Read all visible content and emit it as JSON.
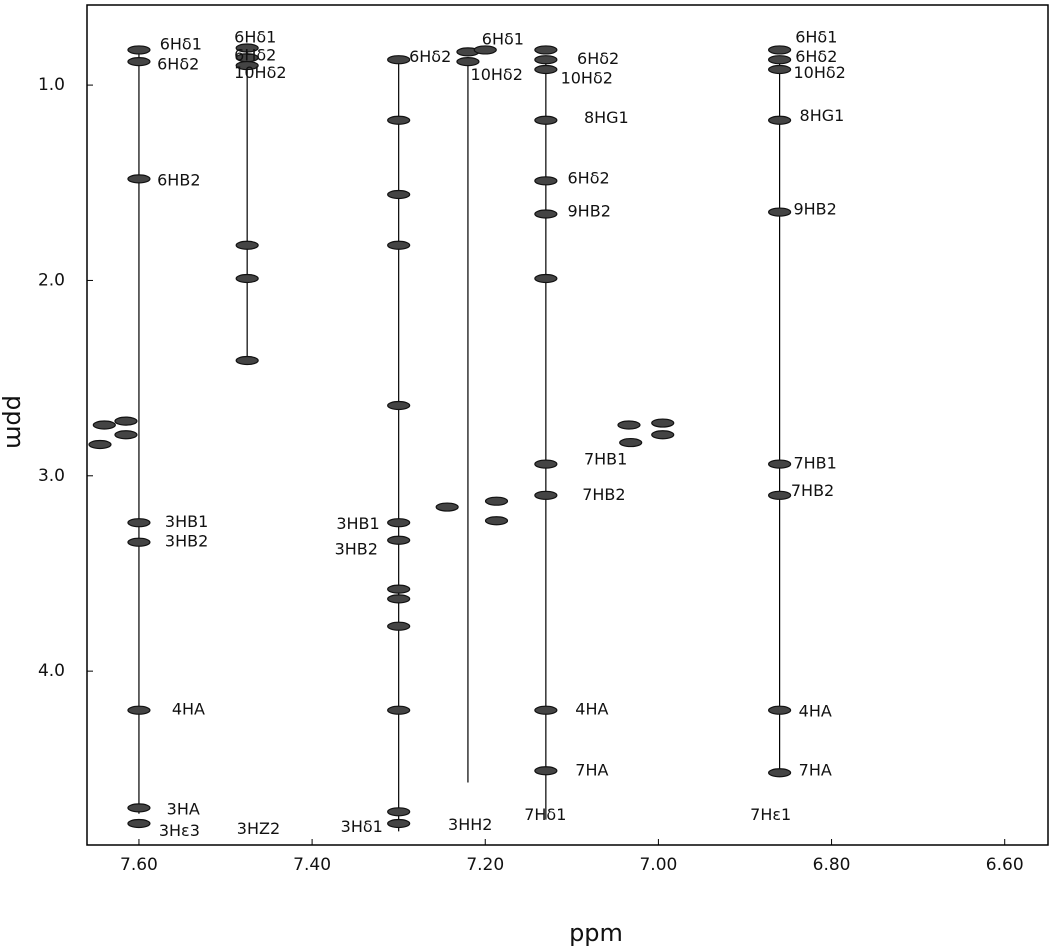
{
  "chart_data": {
    "type": "nmr2d",
    "xlabel": "ppm",
    "ylabel": "ppm",
    "xlim": [
      7.66,
      6.55
    ],
    "ylim": [
      0.59,
      4.89
    ],
    "xticks": [
      {
        "value": 7.6,
        "label": "7.60"
      },
      {
        "value": 7.4,
        "label": "7.40"
      },
      {
        "value": 7.2,
        "label": "7.20"
      },
      {
        "value": 7.0,
        "label": "7.00"
      },
      {
        "value": 6.8,
        "label": "6.80"
      },
      {
        "value": 6.6,
        "label": "6.60"
      }
    ],
    "yticks": [
      {
        "value": 1,
        "label": "1.0"
      },
      {
        "value": 2,
        "label": "2.0"
      },
      {
        "value": 3,
        "label": "3.0"
      },
      {
        "value": 4,
        "label": "4.0"
      }
    ],
    "color": "#111111",
    "connections": [
      {
        "x": 7.6,
        "y": [
          0.82,
          4.73
        ]
      },
      {
        "x": 7.475,
        "y": [
          0.8,
          2.41
        ]
      },
      {
        "x": 7.3,
        "y": [
          0.85,
          4.82
        ]
      },
      {
        "x": 7.22,
        "y": [
          0.86,
          4.57
        ]
      },
      {
        "x": 7.13,
        "y": [
          0.85,
          4.76
        ]
      },
      {
        "x": 6.86,
        "y": [
          0.85,
          4.52
        ]
      }
    ],
    "peaks": {
      "x": [
        7.6,
        7.6,
        7.6,
        7.6,
        7.6,
        7.6,
        7.6,
        7.6,
        7.64,
        7.615,
        7.645,
        7.615,
        7.475,
        7.475,
        7.475,
        7.475,
        7.475,
        7.475,
        7.3,
        7.3,
        7.3,
        7.3,
        7.3,
        7.3,
        7.3,
        7.3,
        7.3,
        7.3,
        7.3,
        7.3,
        7.3,
        7.22,
        7.22,
        7.2,
        7.13,
        7.13,
        7.13,
        7.13,
        7.13,
        7.13,
        7.13,
        7.13,
        7.13,
        7.13,
        7.13,
        6.86,
        6.86,
        6.86,
        6.86,
        6.86,
        6.86,
        6.86,
        6.86,
        6.86,
        7.244,
        7.187,
        7.187,
        7.034,
        7.032,
        6.995,
        6.995
      ],
      "y": [
        0.82,
        0.88,
        1.48,
        3.24,
        3.34,
        4.2,
        4.7,
        4.78,
        2.74,
        2.72,
        2.84,
        2.79,
        0.81,
        0.86,
        0.9,
        1.82,
        1.99,
        2.41,
        0.87,
        1.18,
        1.56,
        1.82,
        2.64,
        3.24,
        3.33,
        3.58,
        3.63,
        3.77,
        4.2,
        4.72,
        4.78,
        0.83,
        0.88,
        0.82,
        0.82,
        0.87,
        0.92,
        1.18,
        1.49,
        1.66,
        1.99,
        2.94,
        3.1,
        4.2,
        4.51,
        0.82,
        0.87,
        0.92,
        1.18,
        1.65,
        2.94,
        3.1,
        4.2,
        4.52,
        3.16,
        3.13,
        3.23,
        2.74,
        2.83,
        2.73,
        2.79
      ]
    },
    "annotations": [
      {
        "text": "6Hδ1",
        "x": 7.576,
        "y": 0.795
      },
      {
        "text": "6Hδ2",
        "x": 7.579,
        "y": 0.898
      },
      {
        "text": "6HB2",
        "x": 7.579,
        "y": 1.49
      },
      {
        "text": "3HB1",
        "x": 7.57,
        "y": 3.24
      },
      {
        "text": "3HB2",
        "x": 7.57,
        "y": 3.34
      },
      {
        "text": "4HA",
        "x": 7.562,
        "y": 4.2
      },
      {
        "text": "3HA",
        "x": 7.568,
        "y": 4.71
      },
      {
        "text": "3Hε3",
        "x": 7.577,
        "y": 4.82
      },
      {
        "text": "6Hδ1",
        "x": 7.49,
        "y": 0.76
      },
      {
        "text": "6Hδ2",
        "x": 7.49,
        "y": 0.85
      },
      {
        "text": "10Hδ2",
        "x": 7.49,
        "y": 0.94
      },
      {
        "text": "3HZ2",
        "x": 7.487,
        "y": 4.81
      },
      {
        "text": "6Hδ2",
        "x": 7.288,
        "y": 0.86
      },
      {
        "text": "3HB1",
        "x": 7.372,
        "y": 3.25
      },
      {
        "text": "3HB2",
        "x": 7.374,
        "y": 3.38
      },
      {
        "text": "3Hδ1",
        "x": 7.367,
        "y": 4.8
      },
      {
        "text": "6Hδ1",
        "x": 7.204,
        "y": 0.77
      },
      {
        "text": "10Hδ2",
        "x": 7.217,
        "y": 0.95
      },
      {
        "text": "3HH2",
        "x": 7.243,
        "y": 4.79
      },
      {
        "text": "6Hδ2",
        "x": 7.094,
        "y": 0.87
      },
      {
        "text": "10Hδ2",
        "x": 7.113,
        "y": 0.97
      },
      {
        "text": "8HG1",
        "x": 7.086,
        "y": 1.17
      },
      {
        "text": "6Hδ2",
        "x": 7.105,
        "y": 1.48
      },
      {
        "text": "9HB2",
        "x": 7.105,
        "y": 1.65
      },
      {
        "text": "7HB1",
        "x": 7.086,
        "y": 2.92
      },
      {
        "text": "7HB2",
        "x": 7.088,
        "y": 3.1
      },
      {
        "text": "4HA",
        "x": 7.096,
        "y": 4.2
      },
      {
        "text": "7HA",
        "x": 7.096,
        "y": 4.51
      },
      {
        "text": "7Hδ1",
        "x": 7.155,
        "y": 4.74
      },
      {
        "text": "6Hδ1",
        "x": 6.842,
        "y": 0.76
      },
      {
        "text": "6Hδ2",
        "x": 6.842,
        "y": 0.86
      },
      {
        "text": "10Hδ2",
        "x": 6.844,
        "y": 0.94
      },
      {
        "text": "8HG1",
        "x": 6.837,
        "y": 1.16
      },
      {
        "text": "9HB2",
        "x": 6.844,
        "y": 1.64
      },
      {
        "text": "7HB1",
        "x": 6.844,
        "y": 2.94
      },
      {
        "text": "7HB2",
        "x": 6.847,
        "y": 3.08
      },
      {
        "text": "4HA",
        "x": 6.838,
        "y": 4.21
      },
      {
        "text": "7HA",
        "x": 6.838,
        "y": 4.51
      },
      {
        "text": "7Hε1",
        "x": 6.894,
        "y": 4.74
      }
    ]
  }
}
